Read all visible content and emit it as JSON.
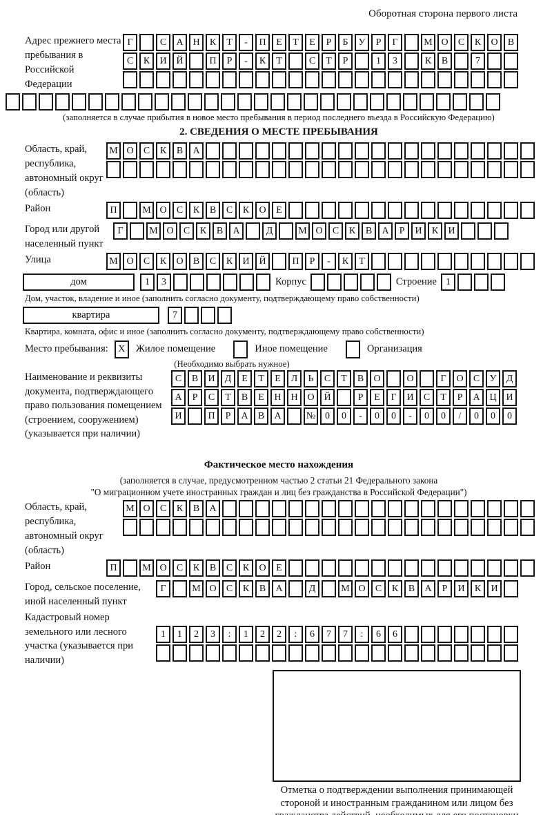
{
  "header": {
    "note": "Оборотная сторона первого листа"
  },
  "prev_address": {
    "label": "Адрес прежнего места пребывания в Российской Федерации",
    "line1": {
      "text": "Г САНКТ-ПЕТЕРБУРГ МОСКОВ",
      "len": 24
    },
    "line2": {
      "text": "СКИЙ ПР-КТ СТР 13 КВ 7",
      "len": 24
    },
    "line3": {
      "text": "",
      "len": 24
    },
    "line4": {
      "text": "",
      "len": 30
    },
    "note": "(заполняется в случае прибытия в новое место пребывания в период последнего въезда в Российскую Федерацию)"
  },
  "section2": {
    "title": "2. СВЕДЕНИЯ О МЕСТЕ ПРЕБЫВАНИЯ",
    "region": {
      "label": "Область, край, республика, автономный округ (область)",
      "line1": {
        "text": "МОСКВА",
        "len": 26
      },
      "line2": {
        "text": "",
        "len": 26
      }
    },
    "district": {
      "label": "Район",
      "line1": {
        "text": "П МОСКВСКОЕ",
        "len": 26
      }
    },
    "city": {
      "label": "Город или другой населенный пункт",
      "line1": {
        "text": "Г МОСКВА Д МОСКВАРИКИ",
        "len": 24
      }
    },
    "street": {
      "label": "Улица",
      "line1": {
        "text": "МОСКОВСКИЙ ПР-КТ",
        "len": 26
      }
    },
    "house": {
      "label": "дом",
      "boxes": {
        "text": "13",
        "len": 8
      },
      "korpus_label": "Корпус",
      "korpus_boxes": {
        "text": "",
        "len": 5
      },
      "stroenie_label": "Строение",
      "stroenie_boxes": {
        "text": "1",
        "len": 4
      },
      "note": "Дом, участок, владение и иное (заполнить согласно документу, подтверждающему право собственности)"
    },
    "apartment": {
      "label": "квартира",
      "boxes": {
        "text": "7",
        "len": 4
      },
      "note": "Квартира, комната, офис и иное (заполнить согласно документу, подтверждающему право собственности)"
    },
    "stay_type": {
      "label": "Место пребывания:",
      "options": [
        {
          "label": "Жилое помещение",
          "mark": "X"
        },
        {
          "label": "Иное помещение",
          "mark": ""
        },
        {
          "label": "Организация",
          "mark": ""
        }
      ],
      "note": "(Необходимо выбрать нужное)"
    },
    "document": {
      "label": "Наименование и реквизиты документа, подтверждающего право пользования помещением (строением, сооружением) (указывается при наличии)",
      "line1": {
        "text": "СВИДЕТЕЛЬСТВО О ГОСУД",
        "len": 21
      },
      "line2": {
        "text": "АРСТВЕННОЙ РЕГИСТРАЦИ",
        "len": 21
      },
      "line3": {
        "text": "И ПРАВА №00-00-00/000",
        "len": 21
      }
    }
  },
  "actual_location": {
    "title": "Фактическое место нахождения",
    "note1": "(заполняется в случае, предусмотренном частью 2 статьи 21 Федерального закона",
    "note2": "\"О миграционном учете иностранных граждан и лиц без гражданства в Российской Федерации\")",
    "region": {
      "label": "Область, край, республика, автономный округ (область)",
      "line1": {
        "text": "МОСКВА",
        "len": 25
      },
      "line2": {
        "text": "",
        "len": 25
      }
    },
    "district": {
      "label": "Район",
      "line1": {
        "text": "П МОСКВСКОЕ",
        "len": 26
      }
    },
    "city": {
      "label": "Город, сельское поселение, иной населенный пункт",
      "line1": {
        "text": "Г МОСКВА Д МОСКВАРИКИ",
        "len": 22
      }
    },
    "cadastral": {
      "label": "Кадастровый номер земельного или лесного участка (указывается при наличии)",
      "line1": {
        "text": "1123:122:677:66",
        "len": 22
      },
      "line2": {
        "text": "",
        "len": 22
      }
    }
  },
  "confirmation": {
    "note": "Отметка о подтверждении выполнения принимающей стороной и иностранным гражданином или лицом без гражданства действий, необходимых для его постановки на учет по месту пребывания"
  }
}
